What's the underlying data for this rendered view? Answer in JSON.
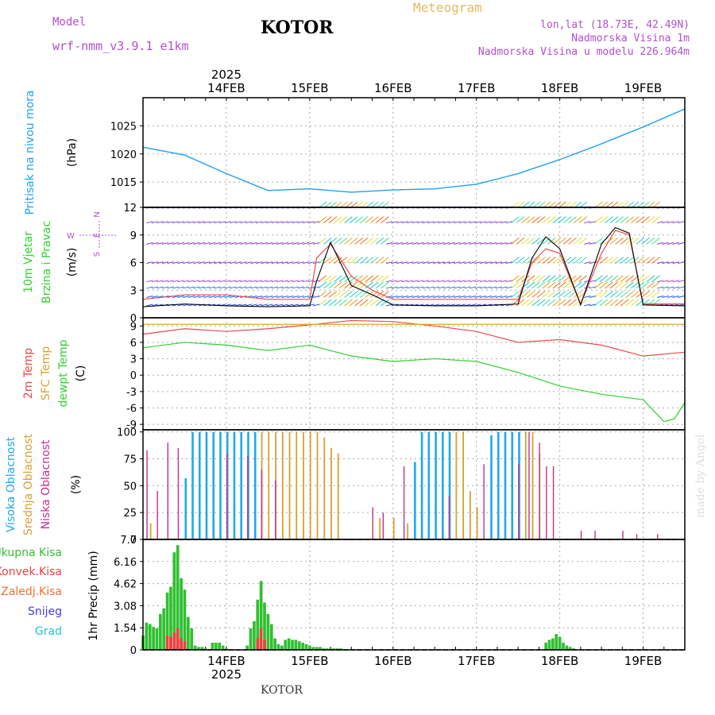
{
  "header": {
    "model_label": "Model",
    "model_name": "wrf-nmm_v3.9.1 e1km",
    "title": "KOTOR",
    "meteogram": "Meteogram",
    "lonlat": "lon,lat (18.73E, 42.49N)",
    "altitude": "Nadmorska Visina 1m",
    "model_altitude": "Nadmorska Visina u modelu 226.964m",
    "footer": "KOTOR",
    "credit": "made by Angel"
  },
  "time_axis": {
    "year": "2025",
    "days": [
      "14FEB",
      "15FEB",
      "16FEB",
      "17FEB",
      "18FEB",
      "19FEB"
    ],
    "start": "13FEB 12h",
    "end": "19FEB 12h"
  },
  "colors": {
    "pressure": "#1ea0f0",
    "temp": "#f04848",
    "sfc_temp": "#e0a030",
    "dewpoint": "#30d030",
    "high_cloud": "#20a8f0",
    "mid_cloud": "#d8a030",
    "low_cloud": "#c03090",
    "total_precip": "#30c030",
    "conv_precip": "#f04040",
    "snow": "#4040e0",
    "grid": "#aaaaaa"
  },
  "chart_data": [
    {
      "id": "pressure",
      "type": "line",
      "ylabel_lines": [
        "Pritisak na nivou mora",
        "(hPa)"
      ],
      "unit": "hPa",
      "ylim": [
        1010.5,
        1030
      ],
      "yticks": [
        1015,
        1020,
        1025
      ],
      "grid": true,
      "series": [
        {
          "x": [
            -12,
            0,
            12,
            24,
            36,
            48,
            60,
            72,
            84,
            96,
            108,
            120,
            132,
            144
          ],
          "values": [
            1021.2,
            1019.8,
            1016.5,
            1013.5,
            1013.8,
            1013.2,
            1013.6,
            1013.8,
            1014.6,
            1016.5,
            1019.0,
            1021.8,
            1024.8,
            1028.0
          ]
        }
      ]
    },
    {
      "id": "wind",
      "type": "line",
      "ylabel_lines": [
        "10m Vjetar",
        "Brzina i Pravac",
        "(m/s)"
      ],
      "compass": [
        "N",
        "E",
        "W",
        "S"
      ],
      "unit": "m/s",
      "ylim": [
        0,
        12
      ],
      "yticks": [
        0,
        3,
        6,
        9,
        12
      ],
      "grid": true,
      "series": [
        {
          "name": "gust",
          "x": [
            -12,
            0,
            12,
            24,
            36,
            38,
            42,
            48,
            54,
            60,
            72,
            84,
            96,
            100,
            104,
            108,
            114,
            120,
            124,
            128,
            132,
            144
          ],
          "values": [
            2.0,
            2.5,
            2.5,
            2.0,
            2.0,
            6.5,
            8.0,
            4.5,
            3.0,
            2.0,
            2.0,
            2.0,
            2.0,
            6.0,
            7.5,
            7.0,
            1.5,
            7.0,
            9.5,
            9.0,
            1.5,
            1.5
          ]
        },
        {
          "name": "mean",
          "x": [
            -12,
            0,
            12,
            24,
            36,
            38,
            42,
            48,
            54,
            60,
            72,
            84,
            96,
            100,
            104,
            108,
            114,
            120,
            124,
            128,
            132,
            144
          ],
          "values": [
            1.2,
            1.5,
            1.3,
            1.2,
            1.3,
            4.0,
            8.2,
            3.5,
            2.5,
            1.4,
            1.3,
            1.3,
            1.5,
            6.5,
            8.8,
            7.5,
            1.4,
            8.0,
            9.8,
            9.2,
            1.4,
            1.3
          ]
        }
      ]
    },
    {
      "id": "temperature",
      "type": "line",
      "ylabel_lines": [
        "2m Temp",
        "SFC Temp",
        "dewpt Temp",
        "(C)"
      ],
      "unit": "C",
      "ylim": [
        -10,
        10.5
      ],
      "yticks": [
        -9,
        -6,
        -3,
        0,
        3,
        6,
        9
      ],
      "grid": true,
      "series": [
        {
          "name": "2m Temp",
          "x": [
            -12,
            0,
            12,
            24,
            36,
            48,
            60,
            72,
            84,
            96,
            108,
            120,
            132,
            144
          ],
          "values": [
            7.5,
            8.5,
            8.0,
            8.5,
            9.2,
            10.0,
            9.8,
            9.0,
            8.0,
            6.0,
            6.5,
            5.5,
            3.5,
            4.2
          ]
        },
        {
          "name": "SFC Temp",
          "x": [
            -12,
            144
          ],
          "values": [
            9.3,
            9.3
          ]
        },
        {
          "name": "dewpt Temp",
          "x": [
            -12,
            0,
            12,
            24,
            36,
            48,
            60,
            72,
            84,
            96,
            108,
            120,
            132,
            138,
            141,
            144
          ],
          "values": [
            5.0,
            6.0,
            5.5,
            4.5,
            5.5,
            3.5,
            2.5,
            3.0,
            2.5,
            0.5,
            -2.0,
            -3.5,
            -4.5,
            -8.5,
            -8.0,
            -5.0
          ]
        }
      ]
    },
    {
      "id": "clouds",
      "type": "bar",
      "ylabel_lines": [
        "Visoka Oblacnost",
        "Srednja Oblacnost",
        "Niska Oblacnost",
        "(%)"
      ],
      "unit": "%",
      "ylim": [
        0,
        102
      ],
      "yticks": [
        0,
        25,
        50,
        75,
        100
      ],
      "grid": true,
      "series": [
        {
          "name": "Visoka",
          "x": [
            0,
            2,
            4,
            6,
            8,
            10,
            12,
            14,
            16,
            18,
            20,
            66,
            68,
            70,
            72,
            74,
            76,
            88,
            90,
            92,
            94,
            96
          ],
          "values": [
            57,
            100,
            100,
            100,
            100,
            100,
            100,
            100,
            100,
            100,
            100,
            72,
            100,
            100,
            100,
            100,
            100,
            97,
            100,
            100,
            100,
            100
          ]
        },
        {
          "name": "Srednja",
          "x": [
            -10,
            22,
            24,
            26,
            28,
            30,
            32,
            34,
            36,
            38,
            40,
            42,
            44,
            56,
            60,
            64,
            78,
            80,
            82,
            84,
            98,
            100,
            102
          ],
          "values": [
            15,
            100,
            100,
            100,
            100,
            100,
            100,
            100,
            100,
            100,
            95,
            85,
            80,
            20,
            20,
            15,
            100,
            100,
            45,
            30,
            100,
            100,
            80
          ]
        },
        {
          "name": "Niska",
          "x": [
            -11,
            -8,
            -5,
            -2,
            12,
            18,
            22,
            26,
            54,
            57,
            63,
            76,
            86,
            96,
            99,
            102,
            104,
            106,
            114,
            118,
            126,
            130,
            136
          ],
          "values": [
            83,
            45,
            90,
            85,
            80,
            78,
            65,
            55,
            30,
            25,
            68,
            40,
            70,
            70,
            100,
            90,
            68,
            68,
            8,
            8,
            8,
            5,
            5
          ]
        }
      ]
    },
    {
      "id": "precip",
      "type": "bar",
      "ylabel_lines": [
        "1hr Precip (mm)"
      ],
      "legend": [
        "Ukupna Kisa",
        "Konvek.Kisa",
        "Zaledj.Kisa",
        "Snijeg",
        "Grad"
      ],
      "unit": "mm",
      "ylim": [
        0,
        7.7
      ],
      "yticks": [
        0,
        1.54,
        3.08,
        4.62,
        6.16,
        7.7
      ],
      "ytick_labels": [
        "0",
        "1.54",
        "3.08",
        "4.62",
        "6.16",
        "7.7"
      ],
      "grid": true,
      "series": [
        {
          "name": "Ukupna Kisa",
          "x": [
            -12,
            -11,
            -10,
            -9,
            -8,
            -7,
            -6,
            -5,
            -4,
            -3,
            -2,
            -1,
            0,
            1,
            2,
            3,
            4,
            5,
            6,
            8,
            9,
            10,
            11,
            12,
            18,
            19,
            20,
            21,
            22,
            23,
            24,
            25,
            26,
            27,
            28,
            29,
            30,
            31,
            32,
            33,
            34,
            35,
            36,
            37,
            38,
            39,
            40,
            41,
            42,
            43,
            44,
            45,
            46,
            47,
            104,
            105,
            106,
            107,
            108,
            109,
            110,
            111,
            112
          ],
          "values": [
            1.0,
            1.9,
            1.8,
            1.6,
            1.5,
            2.5,
            2.9,
            4.0,
            4.4,
            6.8,
            7.3,
            5.0,
            4.2,
            2.3,
            1.5,
            0.3,
            0.2,
            0.2,
            0.1,
            0.5,
            0.5,
            0.5,
            0.3,
            0.1,
            0.3,
            1.5,
            2.0,
            3.5,
            4.8,
            3.3,
            2.5,
            1.8,
            0.8,
            0.4,
            0.3,
            0.7,
            0.8,
            0.7,
            0.7,
            0.6,
            0.5,
            0.4,
            0.3,
            0.2,
            0.2,
            0.2,
            0.1,
            0.1,
            0.1,
            0.1,
            0.1,
            0.1,
            0.05,
            0.05,
            0.5,
            0.7,
            0.8,
            1.1,
            0.9,
            0.5,
            0.3,
            0.2,
            0.1
          ]
        },
        {
          "name": "Konvek.Kisa",
          "x": [
            -5,
            -4,
            -3,
            -2,
            -1,
            0,
            21,
            22,
            23
          ],
          "values": [
            1.0,
            0.9,
            1.2,
            1.5,
            0.8,
            0.6,
            0.8,
            1.5,
            0.7
          ]
        }
      ]
    }
  ]
}
